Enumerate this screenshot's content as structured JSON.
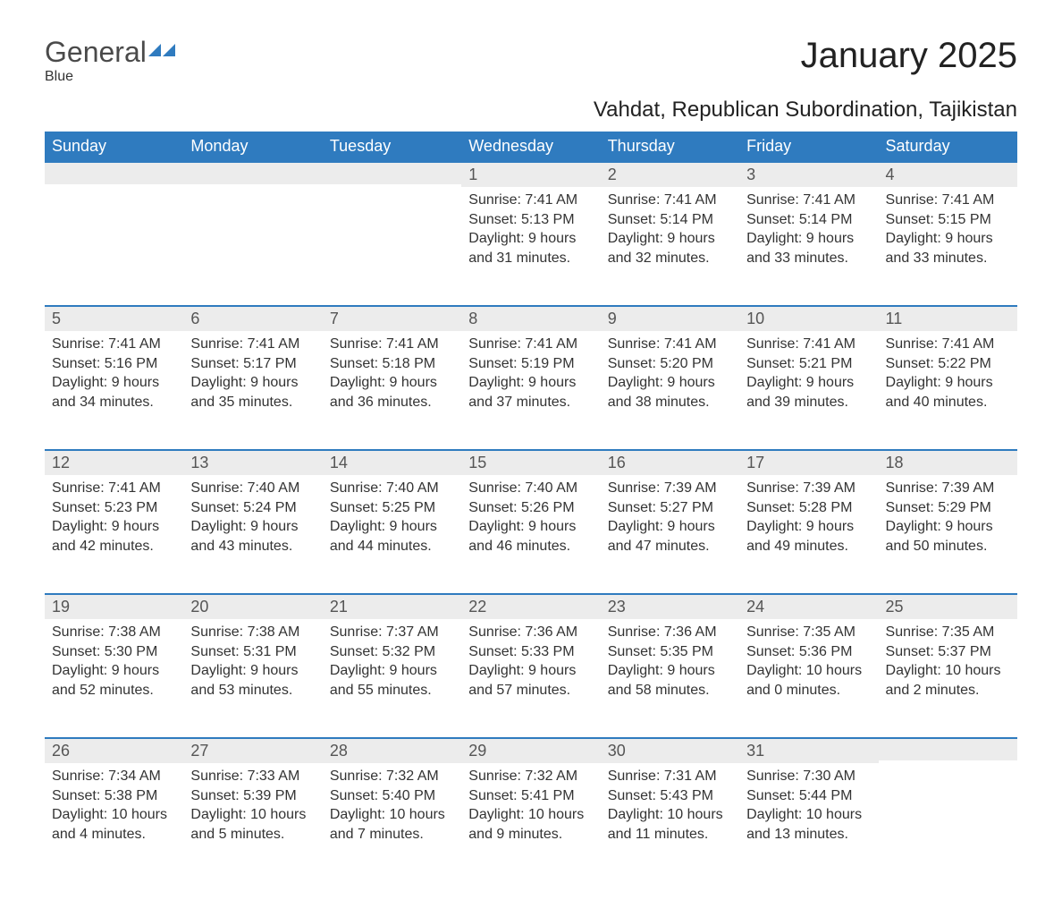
{
  "logo": {
    "part1": "General",
    "part2": "Blue"
  },
  "title": "January 2025",
  "location": "Vahdat, Republican Subordination, Tajikistan",
  "colors": {
    "header_bg": "#2f7bbf",
    "header_text": "#ffffff",
    "daynum_bg": "#ececec",
    "daynum_border": "#2f7bbf",
    "text": "#333333",
    "background": "#ffffff"
  },
  "weekdays": [
    "Sunday",
    "Monday",
    "Tuesday",
    "Wednesday",
    "Thursday",
    "Friday",
    "Saturday"
  ],
  "weeks": [
    [
      null,
      null,
      null,
      {
        "n": "1",
        "sunrise": "7:41 AM",
        "sunset": "5:13 PM",
        "dl": "9 hours and 31 minutes."
      },
      {
        "n": "2",
        "sunrise": "7:41 AM",
        "sunset": "5:14 PM",
        "dl": "9 hours and 32 minutes."
      },
      {
        "n": "3",
        "sunrise": "7:41 AM",
        "sunset": "5:14 PM",
        "dl": "9 hours and 33 minutes."
      },
      {
        "n": "4",
        "sunrise": "7:41 AM",
        "sunset": "5:15 PM",
        "dl": "9 hours and 33 minutes."
      }
    ],
    [
      {
        "n": "5",
        "sunrise": "7:41 AM",
        "sunset": "5:16 PM",
        "dl": "9 hours and 34 minutes."
      },
      {
        "n": "6",
        "sunrise": "7:41 AM",
        "sunset": "5:17 PM",
        "dl": "9 hours and 35 minutes."
      },
      {
        "n": "7",
        "sunrise": "7:41 AM",
        "sunset": "5:18 PM",
        "dl": "9 hours and 36 minutes."
      },
      {
        "n": "8",
        "sunrise": "7:41 AM",
        "sunset": "5:19 PM",
        "dl": "9 hours and 37 minutes."
      },
      {
        "n": "9",
        "sunrise": "7:41 AM",
        "sunset": "5:20 PM",
        "dl": "9 hours and 38 minutes."
      },
      {
        "n": "10",
        "sunrise": "7:41 AM",
        "sunset": "5:21 PM",
        "dl": "9 hours and 39 minutes."
      },
      {
        "n": "11",
        "sunrise": "7:41 AM",
        "sunset": "5:22 PM",
        "dl": "9 hours and 40 minutes."
      }
    ],
    [
      {
        "n": "12",
        "sunrise": "7:41 AM",
        "sunset": "5:23 PM",
        "dl": "9 hours and 42 minutes."
      },
      {
        "n": "13",
        "sunrise": "7:40 AM",
        "sunset": "5:24 PM",
        "dl": "9 hours and 43 minutes."
      },
      {
        "n": "14",
        "sunrise": "7:40 AM",
        "sunset": "5:25 PM",
        "dl": "9 hours and 44 minutes."
      },
      {
        "n": "15",
        "sunrise": "7:40 AM",
        "sunset": "5:26 PM",
        "dl": "9 hours and 46 minutes."
      },
      {
        "n": "16",
        "sunrise": "7:39 AM",
        "sunset": "5:27 PM",
        "dl": "9 hours and 47 minutes."
      },
      {
        "n": "17",
        "sunrise": "7:39 AM",
        "sunset": "5:28 PM",
        "dl": "9 hours and 49 minutes."
      },
      {
        "n": "18",
        "sunrise": "7:39 AM",
        "sunset": "5:29 PM",
        "dl": "9 hours and 50 minutes."
      }
    ],
    [
      {
        "n": "19",
        "sunrise": "7:38 AM",
        "sunset": "5:30 PM",
        "dl": "9 hours and 52 minutes."
      },
      {
        "n": "20",
        "sunrise": "7:38 AM",
        "sunset": "5:31 PM",
        "dl": "9 hours and 53 minutes."
      },
      {
        "n": "21",
        "sunrise": "7:37 AM",
        "sunset": "5:32 PM",
        "dl": "9 hours and 55 minutes."
      },
      {
        "n": "22",
        "sunrise": "7:36 AM",
        "sunset": "5:33 PM",
        "dl": "9 hours and 57 minutes."
      },
      {
        "n": "23",
        "sunrise": "7:36 AM",
        "sunset": "5:35 PM",
        "dl": "9 hours and 58 minutes."
      },
      {
        "n": "24",
        "sunrise": "7:35 AM",
        "sunset": "5:36 PM",
        "dl": "10 hours and 0 minutes."
      },
      {
        "n": "25",
        "sunrise": "7:35 AM",
        "sunset": "5:37 PM",
        "dl": "10 hours and 2 minutes."
      }
    ],
    [
      {
        "n": "26",
        "sunrise": "7:34 AM",
        "sunset": "5:38 PM",
        "dl": "10 hours and 4 minutes."
      },
      {
        "n": "27",
        "sunrise": "7:33 AM",
        "sunset": "5:39 PM",
        "dl": "10 hours and 5 minutes."
      },
      {
        "n": "28",
        "sunrise": "7:32 AM",
        "sunset": "5:40 PM",
        "dl": "10 hours and 7 minutes."
      },
      {
        "n": "29",
        "sunrise": "7:32 AM",
        "sunset": "5:41 PM",
        "dl": "10 hours and 9 minutes."
      },
      {
        "n": "30",
        "sunrise": "7:31 AM",
        "sunset": "5:43 PM",
        "dl": "10 hours and 11 minutes."
      },
      {
        "n": "31",
        "sunrise": "7:30 AM",
        "sunset": "5:44 PM",
        "dl": "10 hours and 13 minutes."
      },
      null
    ]
  ],
  "labels": {
    "sunrise": "Sunrise: ",
    "sunset": "Sunset: ",
    "daylight": "Daylight: "
  }
}
